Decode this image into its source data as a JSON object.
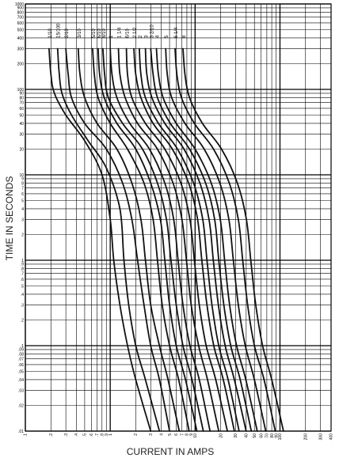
{
  "chart_data": {
    "type": "line",
    "title": "",
    "xlabel": "CURRENT IN AMPS",
    "ylabel": "TIME IN SECONDS",
    "x_scale": "log",
    "y_scale": "log",
    "xlim": [
      0.1,
      400
    ],
    "ylim": [
      0.01,
      1000
    ],
    "grid": true,
    "legend": "none",
    "x_ticks": [
      {
        "v": 0.1,
        "t": ".1"
      },
      {
        "v": 0.2,
        "t": ".2"
      },
      {
        "v": 0.3,
        "t": ".3"
      },
      {
        "v": 0.4,
        "t": ".4"
      },
      {
        "v": 0.5,
        "t": ".5"
      },
      {
        "v": 0.6,
        "t": ".6"
      },
      {
        "v": 0.7,
        "t": ".7"
      },
      {
        "v": 0.8,
        "t": ".8"
      },
      {
        "v": 0.9,
        "t": ".9"
      },
      {
        "v": 1,
        "t": "1"
      },
      {
        "v": 2,
        "t": "2"
      },
      {
        "v": 3,
        "t": "3"
      },
      {
        "v": 4,
        "t": "4"
      },
      {
        "v": 5,
        "t": "5"
      },
      {
        "v": 6,
        "t": "6"
      },
      {
        "v": 7,
        "t": "7"
      },
      {
        "v": 8,
        "t": "8"
      },
      {
        "v": 9,
        "t": "9"
      },
      {
        "v": 10,
        "t": "10"
      },
      {
        "v": 20,
        "t": "20"
      },
      {
        "v": 30,
        "t": "30"
      },
      {
        "v": 40,
        "t": "40"
      },
      {
        "v": 50,
        "t": "50"
      },
      {
        "v": 60,
        "t": "60"
      },
      {
        "v": 70,
        "t": "70"
      },
      {
        "v": 80,
        "t": "80"
      },
      {
        "v": 90,
        "t": "90"
      },
      {
        "v": 100,
        "t": "100"
      },
      {
        "v": 200,
        "t": "200"
      },
      {
        "v": 300,
        "t": "300"
      },
      {
        "v": 400,
        "t": "400"
      }
    ],
    "y_ticks": [
      {
        "v": 0.01,
        "t": ".01"
      },
      {
        "v": 0.02,
        "t": ".02"
      },
      {
        "v": 0.03,
        "t": ".03"
      },
      {
        "v": 0.04,
        "t": ".04"
      },
      {
        "v": 0.05,
        "t": ".05"
      },
      {
        "v": 0.06,
        "t": ".06"
      },
      {
        "v": 0.07,
        "t": ".07"
      },
      {
        "v": 0.08,
        "t": ".08"
      },
      {
        "v": 0.09,
        "t": ".09"
      },
      {
        "v": 0.1,
        "t": ".1"
      },
      {
        "v": 0.2,
        "t": ".2"
      },
      {
        "v": 0.3,
        "t": ".3"
      },
      {
        "v": 0.4,
        "t": ".4"
      },
      {
        "v": 0.5,
        "t": ".5"
      },
      {
        "v": 0.6,
        "t": ".6"
      },
      {
        "v": 0.7,
        "t": ".7"
      },
      {
        "v": 0.8,
        "t": ".8"
      },
      {
        "v": 0.9,
        "t": ".9"
      },
      {
        "v": 1,
        "t": "1"
      },
      {
        "v": 2,
        "t": "2"
      },
      {
        "v": 3,
        "t": "3"
      },
      {
        "v": 4,
        "t": "4"
      },
      {
        "v": 5,
        "t": "5"
      },
      {
        "v": 6,
        "t": "6"
      },
      {
        "v": 7,
        "t": "7"
      },
      {
        "v": 8,
        "t": "8"
      },
      {
        "v": 9,
        "t": "9"
      },
      {
        "v": 10,
        "t": "10"
      },
      {
        "v": 20,
        "t": "20"
      },
      {
        "v": 30,
        "t": "30"
      },
      {
        "v": 40,
        "t": "40"
      },
      {
        "v": 50,
        "t": "50"
      },
      {
        "v": 60,
        "t": "60"
      },
      {
        "v": 70,
        "t": "70"
      },
      {
        "v": 80,
        "t": "80"
      },
      {
        "v": 90,
        "t": "90"
      },
      {
        "v": 100,
        "t": "100"
      },
      {
        "v": 200,
        "t": "200"
      },
      {
        "v": 300,
        "t": "300"
      },
      {
        "v": 400,
        "t": "400"
      },
      {
        "v": 500,
        "t": "500"
      },
      {
        "v": 600,
        "t": "600"
      },
      {
        "v": 700,
        "t": "700"
      },
      {
        "v": 800,
        "t": "800"
      },
      {
        "v": 900,
        "t": "900"
      },
      {
        "v": 1000,
        "t": "1000"
      }
    ],
    "series": [
      {
        "label": "1/10",
        "points": [
          [
            0.19,
            300
          ],
          [
            0.2,
            150
          ],
          [
            0.22,
            90
          ],
          [
            0.3,
            50
          ],
          [
            0.5,
            25
          ],
          [
            0.8,
            10
          ],
          [
            1.0,
            3
          ],
          [
            1.1,
            1
          ],
          [
            1.3,
            0.3
          ],
          [
            1.6,
            0.1
          ],
          [
            2.0,
            0.04
          ],
          [
            3.0,
            0.01
          ]
        ]
      },
      {
        "label": "15/100",
        "points": [
          [
            0.24,
            300
          ],
          [
            0.25,
            160
          ],
          [
            0.27,
            90
          ],
          [
            0.35,
            50
          ],
          [
            0.55,
            25
          ],
          [
            0.9,
            12
          ],
          [
            1.3,
            4
          ],
          [
            1.45,
            1
          ],
          [
            1.65,
            0.3
          ],
          [
            2.0,
            0.1
          ],
          [
            2.6,
            0.04
          ],
          [
            3.8,
            0.01
          ]
        ]
      },
      {
        "label": "2/10",
        "points": [
          [
            0.3,
            300
          ],
          [
            0.32,
            150
          ],
          [
            0.35,
            80
          ],
          [
            0.5,
            40
          ],
          [
            0.9,
            20
          ],
          [
            1.4,
            8
          ],
          [
            1.8,
            3
          ],
          [
            2.1,
            1
          ],
          [
            2.5,
            0.3
          ],
          [
            3.0,
            0.1
          ],
          [
            3.8,
            0.04
          ],
          [
            5.0,
            0.01
          ]
        ]
      },
      {
        "label": "3/10",
        "points": [
          [
            0.42,
            300
          ],
          [
            0.44,
            150
          ],
          [
            0.5,
            80
          ],
          [
            0.7,
            40
          ],
          [
            1.2,
            20
          ],
          [
            1.8,
            8
          ],
          [
            2.3,
            3
          ],
          [
            2.6,
            1
          ],
          [
            3.0,
            0.3
          ],
          [
            3.8,
            0.1
          ],
          [
            4.8,
            0.04
          ],
          [
            6.5,
            0.01
          ]
        ]
      },
      {
        "label": "5/10",
        "points": [
          [
            0.62,
            300
          ],
          [
            0.65,
            150
          ],
          [
            0.72,
            80
          ],
          [
            1.0,
            40
          ],
          [
            1.6,
            20
          ],
          [
            2.5,
            8
          ],
          [
            3.2,
            3
          ],
          [
            3.6,
            1
          ],
          [
            4.1,
            0.3
          ],
          [
            5.0,
            0.1
          ],
          [
            6.4,
            0.04
          ],
          [
            8.5,
            0.01
          ]
        ]
      },
      {
        "label": "6/10",
        "points": [
          [
            0.72,
            300
          ],
          [
            0.75,
            150
          ],
          [
            0.85,
            80
          ],
          [
            1.2,
            40
          ],
          [
            2.0,
            20
          ],
          [
            3.0,
            8
          ],
          [
            3.9,
            3
          ],
          [
            4.4,
            1
          ],
          [
            5.0,
            0.3
          ],
          [
            6.0,
            0.1
          ],
          [
            7.7,
            0.04
          ],
          [
            10.5,
            0.01
          ]
        ]
      },
      {
        "label": "8/10",
        "points": [
          [
            0.82,
            300
          ],
          [
            0.86,
            150
          ],
          [
            0.95,
            80
          ],
          [
            1.4,
            40
          ],
          [
            2.4,
            20
          ],
          [
            3.6,
            8
          ],
          [
            4.6,
            3
          ],
          [
            5.2,
            1
          ],
          [
            6.0,
            0.3
          ],
          [
            7.2,
            0.1
          ],
          [
            9.2,
            0.04
          ],
          [
            12.5,
            0.01
          ]
        ]
      },
      {
        "label": "1",
        "points": [
          [
            1.0,
            300
          ],
          [
            1.05,
            150
          ],
          [
            1.2,
            80
          ],
          [
            1.7,
            40
          ],
          [
            2.9,
            20
          ],
          [
            4.4,
            8
          ],
          [
            5.6,
            3
          ],
          [
            6.3,
            1
          ],
          [
            7.2,
            0.3
          ],
          [
            8.7,
            0.1
          ],
          [
            11.2,
            0.04
          ],
          [
            15,
            0.01
          ]
        ]
      },
      {
        "label": "1 1/4",
        "points": [
          [
            1.25,
            300
          ],
          [
            1.3,
            150
          ],
          [
            1.5,
            80
          ],
          [
            2.1,
            40
          ],
          [
            3.6,
            20
          ],
          [
            5.5,
            8
          ],
          [
            7.0,
            3
          ],
          [
            7.9,
            1
          ],
          [
            9.0,
            0.3
          ],
          [
            11,
            0.1
          ],
          [
            14,
            0.04
          ],
          [
            19,
            0.01
          ]
        ]
      },
      {
        "label": "6/10",
        "points": [
          [
            1.55,
            300
          ],
          [
            1.6,
            150
          ],
          [
            1.8,
            80
          ],
          [
            2.6,
            40
          ],
          [
            4.4,
            20
          ],
          [
            6.8,
            8
          ],
          [
            8.7,
            3
          ],
          [
            9.8,
            1
          ],
          [
            11.2,
            0.3
          ],
          [
            13.5,
            0.1
          ],
          [
            17.5,
            0.04
          ],
          [
            24,
            0.01
          ]
        ]
      },
      {
        "label": "2 1/2",
        "points": [
          [
            1.9,
            300
          ],
          [
            2.0,
            150
          ],
          [
            2.3,
            80
          ],
          [
            3.2,
            40
          ],
          [
            5.4,
            20
          ],
          [
            8.4,
            8
          ],
          [
            10.7,
            3
          ],
          [
            12,
            1
          ],
          [
            13.8,
            0.3
          ],
          [
            16.6,
            0.1
          ],
          [
            21.5,
            0.04
          ],
          [
            29,
            0.01
          ]
        ]
      },
      {
        "label": "2",
        "points": [
          [
            2.2,
            300
          ],
          [
            2.3,
            150
          ],
          [
            2.6,
            80
          ],
          [
            3.7,
            40
          ],
          [
            6.2,
            20
          ],
          [
            9.6,
            8
          ],
          [
            12.3,
            3
          ],
          [
            13.8,
            1
          ],
          [
            15.8,
            0.3
          ],
          [
            19,
            0.1
          ],
          [
            24.5,
            0.04
          ],
          [
            33,
            0.01
          ]
        ]
      },
      {
        "label": "3",
        "points": [
          [
            2.6,
            300
          ],
          [
            2.7,
            150
          ],
          [
            3.1,
            80
          ],
          [
            4.4,
            40
          ],
          [
            7.4,
            20
          ],
          [
            11.4,
            8
          ],
          [
            14.6,
            3
          ],
          [
            16.4,
            1
          ],
          [
            18.8,
            0.3
          ],
          [
            22.6,
            0.1
          ],
          [
            29,
            0.04
          ],
          [
            40,
            0.01
          ]
        ]
      },
      {
        "label": "3 2/10",
        "points": [
          [
            3.0,
            300
          ],
          [
            3.2,
            150
          ],
          [
            3.6,
            80
          ],
          [
            5.1,
            40
          ],
          [
            8.6,
            20
          ],
          [
            13.3,
            8
          ],
          [
            17,
            3
          ],
          [
            19,
            1
          ],
          [
            21.8,
            0.3
          ],
          [
            26.3,
            0.1
          ],
          [
            34,
            0.04
          ],
          [
            46,
            0.01
          ]
        ]
      },
      {
        "label": "4",
        "points": [
          [
            3.5,
            300
          ],
          [
            3.7,
            150
          ],
          [
            4.2,
            80
          ],
          [
            6.0,
            40
          ],
          [
            10,
            20
          ],
          [
            15.5,
            8
          ],
          [
            19.8,
            3
          ],
          [
            22.3,
            1
          ],
          [
            25.5,
            0.3
          ],
          [
            30.8,
            0.1
          ],
          [
            39.6,
            0.04
          ],
          [
            54,
            0.01
          ]
        ]
      },
      {
        "label": "5",
        "points": [
          [
            4.5,
            300
          ],
          [
            4.7,
            150
          ],
          [
            5.3,
            80
          ],
          [
            7.6,
            40
          ],
          [
            12.8,
            20
          ],
          [
            19.6,
            8
          ],
          [
            25,
            3
          ],
          [
            28.2,
            1
          ],
          [
            32.3,
            0.3
          ],
          [
            39,
            0.1
          ],
          [
            50,
            0.04
          ],
          [
            68,
            0.01
          ]
        ]
      },
      {
        "label": "6 1/4",
        "points": [
          [
            5.8,
            300
          ],
          [
            6.1,
            150
          ],
          [
            6.9,
            80
          ],
          [
            9.8,
            40
          ],
          [
            16.5,
            20
          ],
          [
            25.3,
            8
          ],
          [
            32.3,
            3
          ],
          [
            36.4,
            1
          ],
          [
            41.6,
            0.3
          ],
          [
            50,
            0.1
          ],
          [
            65,
            0.04
          ],
          [
            88,
            0.01
          ]
        ]
      },
      {
        "label": "8",
        "points": [
          [
            7.2,
            300
          ],
          [
            7.6,
            150
          ],
          [
            8.6,
            80
          ],
          [
            12.2,
            40
          ],
          [
            20.5,
            20
          ],
          [
            31.5,
            8
          ],
          [
            40.2,
            3
          ],
          [
            45.3,
            1
          ],
          [
            51.8,
            0.3
          ],
          [
            62.4,
            0.1
          ],
          [
            80,
            0.04
          ],
          [
            110,
            0.01
          ]
        ]
      }
    ]
  }
}
